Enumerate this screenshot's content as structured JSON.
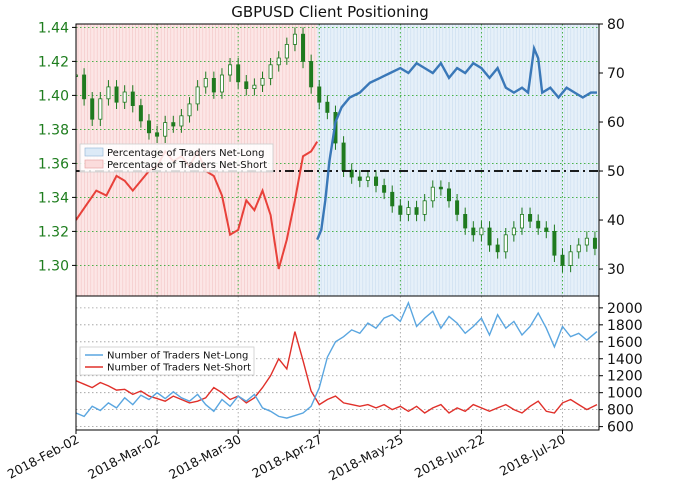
{
  "chart_data": [
    {
      "type": "line",
      "title": "GBPUSD Client Positioning",
      "xlabel": "",
      "ylabel": "",
      "x_tick_labels": [
        "2018-Feb-02",
        "2018-Mar-02",
        "2018-Mar-30",
        "2018-Apr-27",
        "2018-May-25",
        "2018-Jun-22",
        "2018-Jul-20"
      ],
      "x_tick_weeks": [
        0,
        4,
        8,
        12,
        16,
        20,
        24
      ],
      "x_range_weeks": [
        0,
        25.8
      ],
      "y_left_ticks": [
        "1.30",
        "1.32",
        "1.34",
        "1.36",
        "1.38",
        "1.40",
        "1.42",
        "1.44"
      ],
      "y_left_range": [
        1.282,
        1.442
      ],
      "y_right_ticks": [
        "30",
        "40",
        "50",
        "60",
        "70",
        "80"
      ],
      "y_right_range": [
        24.5,
        80
      ],
      "reference_line": 50,
      "legend": {
        "placement": "center-left",
        "entries": [
          "Percentage of Traders Net-Long",
          "Percentage of Traders Net-Short"
        ]
      },
      "colors": {
        "long": "#3a78b8",
        "short": "#e8413a",
        "long_fill": "#dceaf7",
        "short_fill": "#fbdcdc",
        "price": "#1f7a1f"
      },
      "price_close": [
        [
          0.0,
          1.412
        ],
        [
          0.4,
          1.398
        ],
        [
          0.8,
          1.386
        ],
        [
          1.2,
          1.398
        ],
        [
          1.6,
          1.405
        ],
        [
          2.0,
          1.396
        ],
        [
          2.4,
          1.402
        ],
        [
          2.8,
          1.394
        ],
        [
          3.2,
          1.385
        ],
        [
          3.6,
          1.378
        ],
        [
          4.0,
          1.376
        ],
        [
          4.4,
          1.384
        ],
        [
          4.8,
          1.382
        ],
        [
          5.2,
          1.388
        ],
        [
          5.6,
          1.395
        ],
        [
          6.0,
          1.405
        ],
        [
          6.4,
          1.41
        ],
        [
          6.8,
          1.402
        ],
        [
          7.2,
          1.412
        ],
        [
          7.6,
          1.418
        ],
        [
          8.0,
          1.408
        ],
        [
          8.4,
          1.404
        ],
        [
          8.8,
          1.406
        ],
        [
          9.2,
          1.41
        ],
        [
          9.6,
          1.418
        ],
        [
          10.0,
          1.422
        ],
        [
          10.4,
          1.43
        ],
        [
          10.8,
          1.436
        ],
        [
          11.2,
          1.42
        ],
        [
          11.6,
          1.405
        ],
        [
          12.0,
          1.396
        ],
        [
          12.4,
          1.39
        ],
        [
          12.8,
          1.372
        ],
        [
          13.2,
          1.356
        ],
        [
          13.6,
          1.352
        ],
        [
          14.0,
          1.35
        ],
        [
          14.4,
          1.352
        ],
        [
          14.8,
          1.347
        ],
        [
          15.2,
          1.343
        ],
        [
          15.6,
          1.335
        ],
        [
          16.0,
          1.33
        ],
        [
          16.4,
          1.334
        ],
        [
          16.8,
          1.33
        ],
        [
          17.2,
          1.338
        ],
        [
          17.6,
          1.346
        ],
        [
          18.0,
          1.345
        ],
        [
          18.4,
          1.338
        ],
        [
          18.8,
          1.33
        ],
        [
          19.2,
          1.322
        ],
        [
          19.6,
          1.318
        ],
        [
          20.0,
          1.322
        ],
        [
          20.4,
          1.312
        ],
        [
          20.8,
          1.308
        ],
        [
          21.2,
          1.318
        ],
        [
          21.6,
          1.322
        ],
        [
          22.0,
          1.33
        ],
        [
          22.4,
          1.326
        ],
        [
          22.8,
          1.322
        ],
        [
          23.2,
          1.32
        ],
        [
          23.6,
          1.306
        ],
        [
          24.0,
          1.3
        ],
        [
          24.4,
          1.308
        ],
        [
          24.8,
          1.312
        ],
        [
          25.2,
          1.316
        ],
        [
          25.6,
          1.31
        ]
      ],
      "percent_long": [
        [
          11.9,
          36
        ],
        [
          12.1,
          38
        ],
        [
          12.3,
          44
        ],
        [
          12.5,
          52
        ],
        [
          12.8,
          60
        ],
        [
          13.1,
          63
        ],
        [
          13.5,
          65
        ],
        [
          14.0,
          66
        ],
        [
          14.5,
          68
        ],
        [
          15.0,
          69
        ],
        [
          15.5,
          70
        ],
        [
          16.0,
          71
        ],
        [
          16.4,
          70
        ],
        [
          16.8,
          72
        ],
        [
          17.2,
          71
        ],
        [
          17.6,
          70
        ],
        [
          18.0,
          72
        ],
        [
          18.4,
          69
        ],
        [
          18.8,
          71
        ],
        [
          19.2,
          70
        ],
        [
          19.6,
          72
        ],
        [
          20.0,
          71
        ],
        [
          20.4,
          69
        ],
        [
          20.8,
          71
        ],
        [
          21.2,
          67
        ],
        [
          21.6,
          66
        ],
        [
          22.0,
          67
        ],
        [
          22.3,
          66
        ],
        [
          22.6,
          75
        ],
        [
          22.8,
          73
        ],
        [
          23.0,
          66
        ],
        [
          23.4,
          67
        ],
        [
          23.8,
          65
        ],
        [
          24.2,
          67
        ],
        [
          24.6,
          66
        ],
        [
          25.0,
          65
        ],
        [
          25.4,
          66
        ],
        [
          25.7,
          66
        ]
      ],
      "percent_short": [
        [
          0.0,
          40
        ],
        [
          0.5,
          43
        ],
        [
          1.0,
          46
        ],
        [
          1.5,
          45
        ],
        [
          2.0,
          49
        ],
        [
          2.4,
          48
        ],
        [
          2.8,
          46
        ],
        [
          3.2,
          48
        ],
        [
          3.6,
          50
        ],
        [
          4.0,
          51
        ],
        [
          4.4,
          54
        ],
        [
          4.8,
          52
        ],
        [
          5.2,
          53
        ],
        [
          5.6,
          51
        ],
        [
          6.0,
          54
        ],
        [
          6.4,
          50
        ],
        [
          6.8,
          49
        ],
        [
          7.2,
          45
        ],
        [
          7.6,
          37
        ],
        [
          8.0,
          38
        ],
        [
          8.4,
          44
        ],
        [
          8.8,
          42
        ],
        [
          9.2,
          46
        ],
        [
          9.6,
          41
        ],
        [
          10.0,
          30
        ],
        [
          10.4,
          36
        ],
        [
          10.8,
          44
        ],
        [
          11.2,
          53
        ],
        [
          11.6,
          54
        ],
        [
          11.9,
          56
        ]
      ]
    },
    {
      "type": "line",
      "xlabel": "",
      "ylabel": "",
      "y_right_ticks": [
        "600",
        "800",
        "1000",
        "1200",
        "1400",
        "1600",
        "1800",
        "2000"
      ],
      "y_range": [
        560,
        2140
      ],
      "legend": {
        "placement": "center-left",
        "entries": [
          "Number of Traders Net-Long",
          "Number of Traders Net-Short"
        ]
      },
      "colors": {
        "long": "#5aa6e0",
        "short": "#e0302a"
      },
      "series": [
        {
          "name": "Number of Traders Net-Long",
          "points": [
            [
              0.0,
              760
            ],
            [
              0.4,
              720
            ],
            [
              0.8,
              840
            ],
            [
              1.2,
              790
            ],
            [
              1.6,
              880
            ],
            [
              2.0,
              820
            ],
            [
              2.4,
              940
            ],
            [
              2.8,
              860
            ],
            [
              3.2,
              970
            ],
            [
              3.6,
              920
            ],
            [
              4.0,
              1000
            ],
            [
              4.4,
              930
            ],
            [
              4.8,
              1010
            ],
            [
              5.2,
              940
            ],
            [
              5.6,
              900
            ],
            [
              6.0,
              980
            ],
            [
              6.4,
              860
            ],
            [
              6.8,
              780
            ],
            [
              7.2,
              920
            ],
            [
              7.6,
              840
            ],
            [
              8.0,
              960
            ],
            [
              8.4,
              900
            ],
            [
              8.8,
              980
            ],
            [
              9.2,
              820
            ],
            [
              9.6,
              780
            ],
            [
              10.0,
              720
            ],
            [
              10.4,
              700
            ],
            [
              10.8,
              730
            ],
            [
              11.2,
              760
            ],
            [
              11.6,
              840
            ],
            [
              12.0,
              1060
            ],
            [
              12.4,
              1420
            ],
            [
              12.8,
              1600
            ],
            [
              13.2,
              1660
            ],
            [
              13.6,
              1740
            ],
            [
              14.0,
              1700
            ],
            [
              14.4,
              1820
            ],
            [
              14.8,
              1760
            ],
            [
              15.2,
              1880
            ],
            [
              15.6,
              1920
            ],
            [
              16.0,
              1840
            ],
            [
              16.4,
              2060
            ],
            [
              16.8,
              1780
            ],
            [
              17.2,
              1880
            ],
            [
              17.6,
              1960
            ],
            [
              18.0,
              1760
            ],
            [
              18.4,
              1900
            ],
            [
              18.8,
              1820
            ],
            [
              19.2,
              1700
            ],
            [
              19.6,
              1780
            ],
            [
              20.0,
              1880
            ],
            [
              20.4,
              1680
            ],
            [
              20.8,
              1920
            ],
            [
              21.2,
              1760
            ],
            [
              21.6,
              1840
            ],
            [
              22.0,
              1680
            ],
            [
              22.4,
              1780
            ],
            [
              22.8,
              1940
            ],
            [
              23.2,
              1760
            ],
            [
              23.6,
              1540
            ],
            [
              24.0,
              1780
            ],
            [
              24.4,
              1660
            ],
            [
              24.8,
              1700
            ],
            [
              25.2,
              1620
            ],
            [
              25.7,
              1720
            ]
          ]
        },
        {
          "name": "Number of Traders Net-Short",
          "points": [
            [
              0.0,
              1140
            ],
            [
              0.4,
              1100
            ],
            [
              0.8,
              1060
            ],
            [
              1.2,
              1120
            ],
            [
              1.6,
              1080
            ],
            [
              2.0,
              1030
            ],
            [
              2.4,
              1040
            ],
            [
              2.8,
              980
            ],
            [
              3.2,
              1020
            ],
            [
              3.6,
              960
            ],
            [
              4.0,
              930
            ],
            [
              4.4,
              900
            ],
            [
              4.8,
              960
            ],
            [
              5.2,
              920
            ],
            [
              5.6,
              880
            ],
            [
              6.0,
              900
            ],
            [
              6.4,
              940
            ],
            [
              6.8,
              1060
            ],
            [
              7.2,
              1000
            ],
            [
              7.6,
              920
            ],
            [
              8.0,
              960
            ],
            [
              8.4,
              880
            ],
            [
              8.8,
              940
            ],
            [
              9.2,
              1060
            ],
            [
              9.6,
              1200
            ],
            [
              10.0,
              1400
            ],
            [
              10.4,
              1280
            ],
            [
              10.8,
              1720
            ],
            [
              11.2,
              1380
            ],
            [
              11.6,
              1020
            ],
            [
              12.0,
              860
            ],
            [
              12.4,
              920
            ],
            [
              12.8,
              960
            ],
            [
              13.2,
              880
            ],
            [
              13.6,
              860
            ],
            [
              14.0,
              840
            ],
            [
              14.4,
              860
            ],
            [
              14.8,
              820
            ],
            [
              15.2,
              860
            ],
            [
              15.6,
              800
            ],
            [
              16.0,
              840
            ],
            [
              16.4,
              780
            ],
            [
              16.8,
              840
            ],
            [
              17.2,
              760
            ],
            [
              17.6,
              820
            ],
            [
              18.0,
              860
            ],
            [
              18.4,
              760
            ],
            [
              18.8,
              820
            ],
            [
              19.2,
              780
            ],
            [
              19.6,
              860
            ],
            [
              20.0,
              820
            ],
            [
              20.4,
              780
            ],
            [
              20.8,
              820
            ],
            [
              21.2,
              860
            ],
            [
              21.6,
              800
            ],
            [
              22.0,
              760
            ],
            [
              22.4,
              840
            ],
            [
              22.8,
              900
            ],
            [
              23.2,
              780
            ],
            [
              23.6,
              760
            ],
            [
              24.0,
              880
            ],
            [
              24.4,
              920
            ],
            [
              24.8,
              860
            ],
            [
              25.2,
              800
            ],
            [
              25.7,
              860
            ]
          ]
        }
      ]
    }
  ]
}
